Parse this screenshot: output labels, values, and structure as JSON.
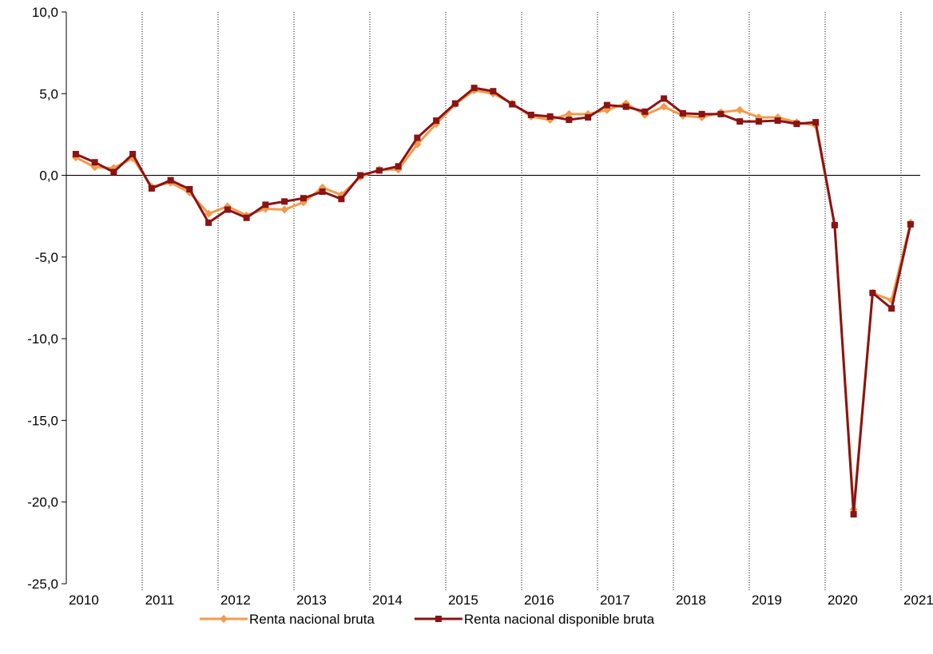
{
  "chart_data": {
    "type": "line",
    "categories": [
      "2010",
      null,
      null,
      null,
      "2011",
      null,
      null,
      null,
      "2012",
      null,
      null,
      null,
      "2013",
      null,
      null,
      null,
      "2014",
      null,
      null,
      null,
      "2015",
      null,
      null,
      null,
      "2016",
      null,
      null,
      null,
      "2017",
      null,
      null,
      null,
      "2018",
      null,
      null,
      null,
      "2019",
      null,
      null,
      null,
      "2020",
      null,
      null,
      null,
      "2021"
    ],
    "series": [
      {
        "name": "Renta nacional bruta",
        "color": "#f39a4c",
        "marker": "diamond",
        "values": [
          1.1,
          0.5,
          0.45,
          1.05,
          -0.7,
          -0.45,
          -1.05,
          -2.35,
          -1.9,
          -2.45,
          -2.05,
          -2.1,
          -1.65,
          -0.75,
          -1.2,
          -0.1,
          0.35,
          0.35,
          1.9,
          3.15,
          4.35,
          5.2,
          5.0,
          4.4,
          3.6,
          3.4,
          3.75,
          3.75,
          4.0,
          4.4,
          3.7,
          4.2,
          3.65,
          3.55,
          3.85,
          4.0,
          3.55,
          3.55,
          3.25,
          3.05,
          -3.05,
          -20.45,
          -7.2,
          -7.65,
          -2.9
        ]
      },
      {
        "name": "Renta nacional disponible bruta",
        "color": "#8b1313",
        "marker": "square",
        "values": [
          1.3,
          0.8,
          0.2,
          1.3,
          -0.8,
          -0.3,
          -0.85,
          -2.9,
          -2.1,
          -2.6,
          -1.8,
          -1.6,
          -1.4,
          -1.0,
          -1.45,
          0.0,
          0.3,
          0.55,
          2.3,
          3.35,
          4.4,
          5.35,
          5.15,
          4.35,
          3.7,
          3.6,
          3.4,
          3.55,
          4.3,
          4.2,
          3.9,
          4.7,
          3.8,
          3.75,
          3.75,
          3.3,
          3.3,
          3.35,
          3.15,
          3.25,
          -3.05,
          -20.75,
          -7.2,
          -8.15,
          -3.0
        ]
      }
    ],
    "ylim": [
      -25,
      10
    ],
    "yticks": [
      {
        "value": -25,
        "label": "-25,0"
      },
      {
        "value": -20,
        "label": "-20,0"
      },
      {
        "value": -15,
        "label": "-15,0"
      },
      {
        "value": -10,
        "label": "-10,0"
      },
      {
        "value": -5,
        "label": "-5,0"
      },
      {
        "value": 0,
        "label": "0,0"
      },
      {
        "value": 5,
        "label": "5,0"
      },
      {
        "value": 10,
        "label": "10,0"
      }
    ],
    "grid": true,
    "legend": "bottom"
  }
}
